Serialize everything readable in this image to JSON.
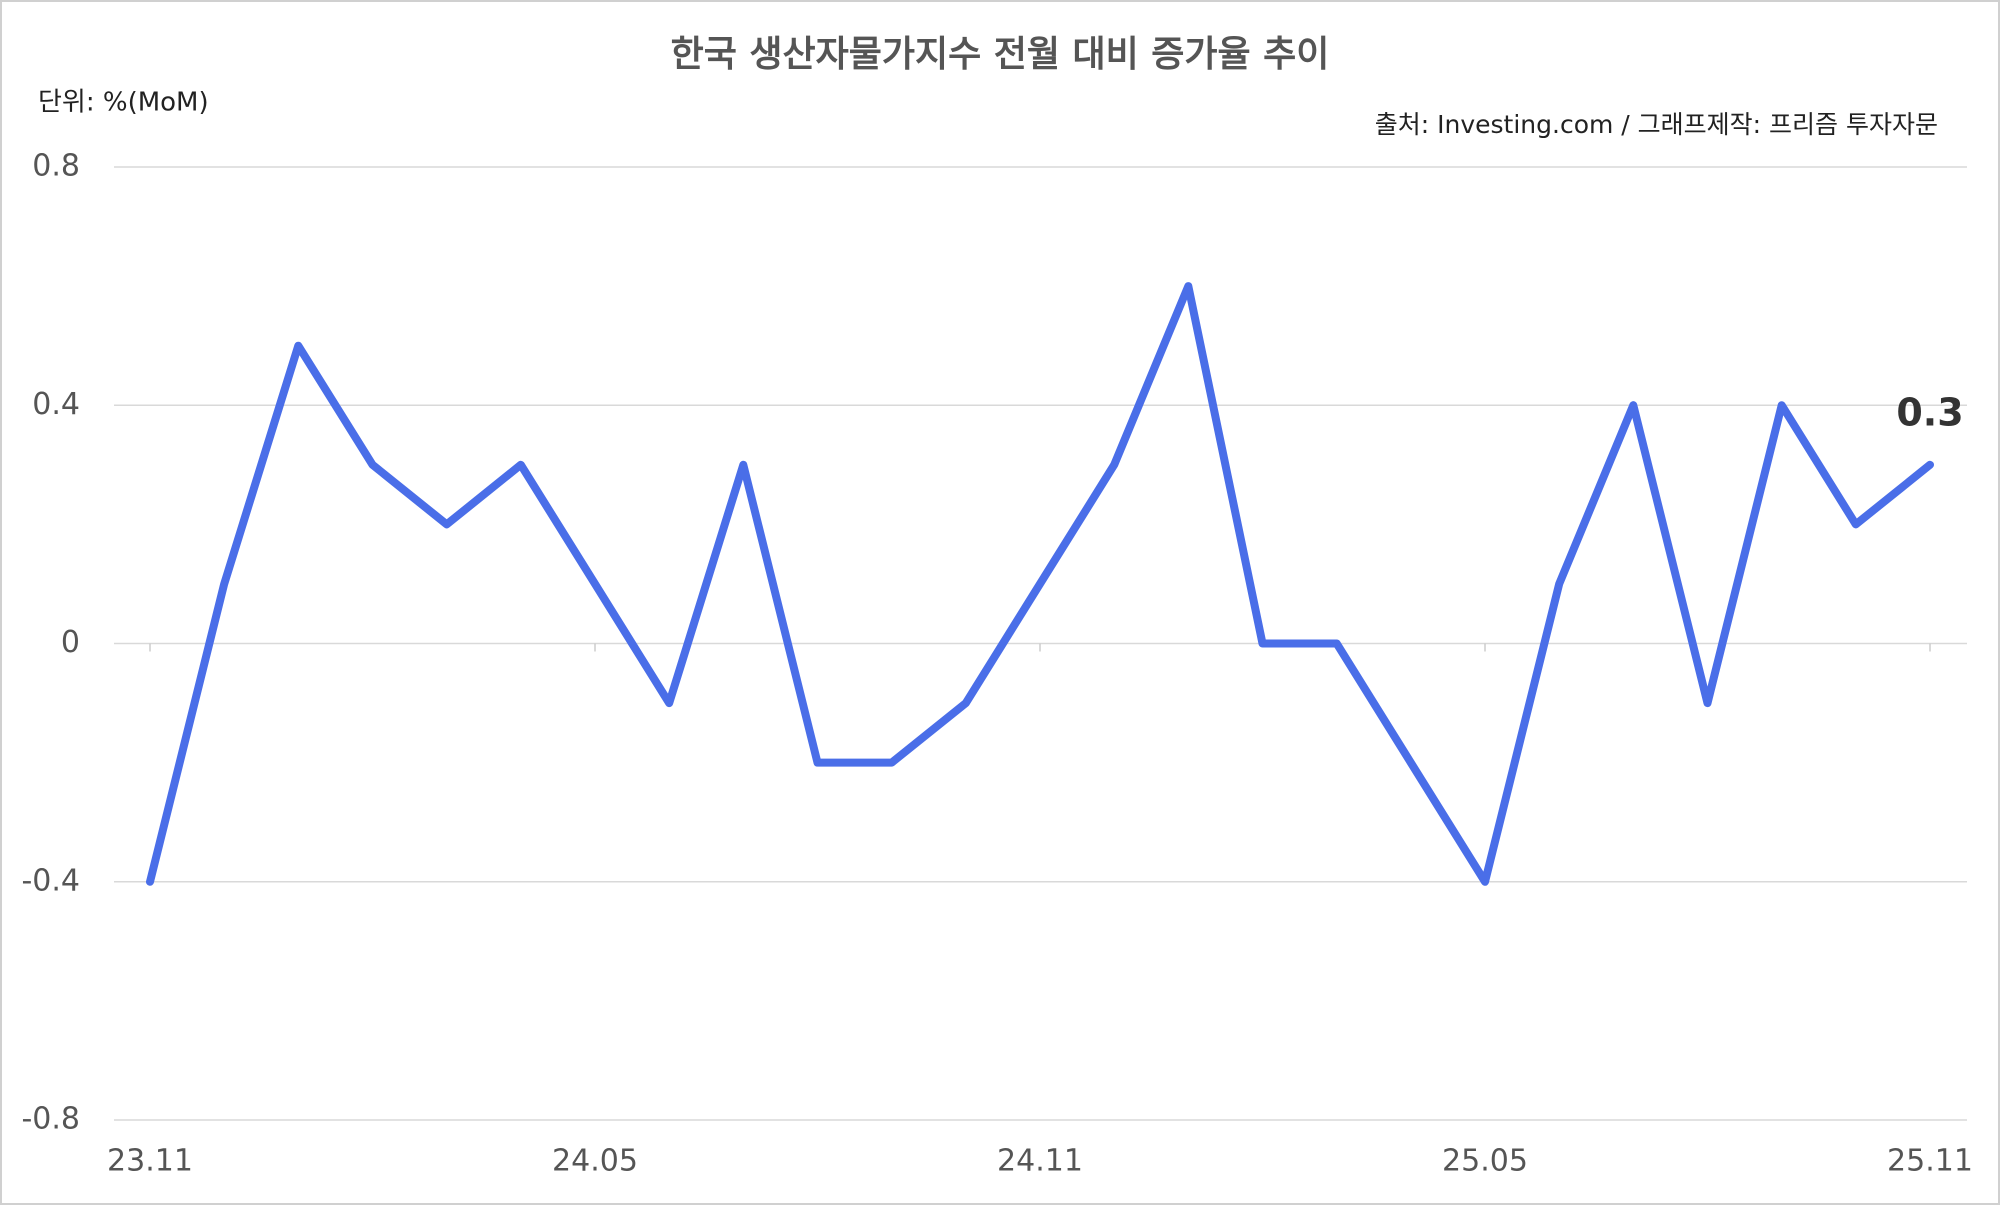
{
  "chart_data": {
    "type": "line",
    "title": "한국 생산자물가지수 전월 대비 증가율 추이",
    "unit_label": "단위: %(MoM)",
    "source": "출처: Investing.com / 그래프제작: 프리즘 투자자문",
    "categories": [
      "23.11",
      null,
      null,
      null,
      null,
      null,
      "24.05",
      null,
      null,
      null,
      null,
      null,
      "24.11",
      null,
      null,
      null,
      null,
      null,
      "25.05",
      null,
      null,
      null,
      null,
      null,
      "25.11"
    ],
    "values": [
      -0.4,
      0.1,
      0.5,
      0.3,
      0.2,
      0.3,
      0.1,
      -0.1,
      0.3,
      -0.2,
      -0.2,
      -0.1,
      0.1,
      0.3,
      0.6,
      0,
      0,
      -0.2,
      -0.4,
      0.1,
      0.4,
      -0.1,
      0.4,
      0.2,
      0.3
    ],
    "color": "#4a6ee8",
    "ylim": [
      -0.8,
      0.8
    ],
    "yticks": [
      0.8,
      0.4,
      0,
      -0.4,
      -0.8
    ],
    "grid": true,
    "last_value_label": true
  }
}
